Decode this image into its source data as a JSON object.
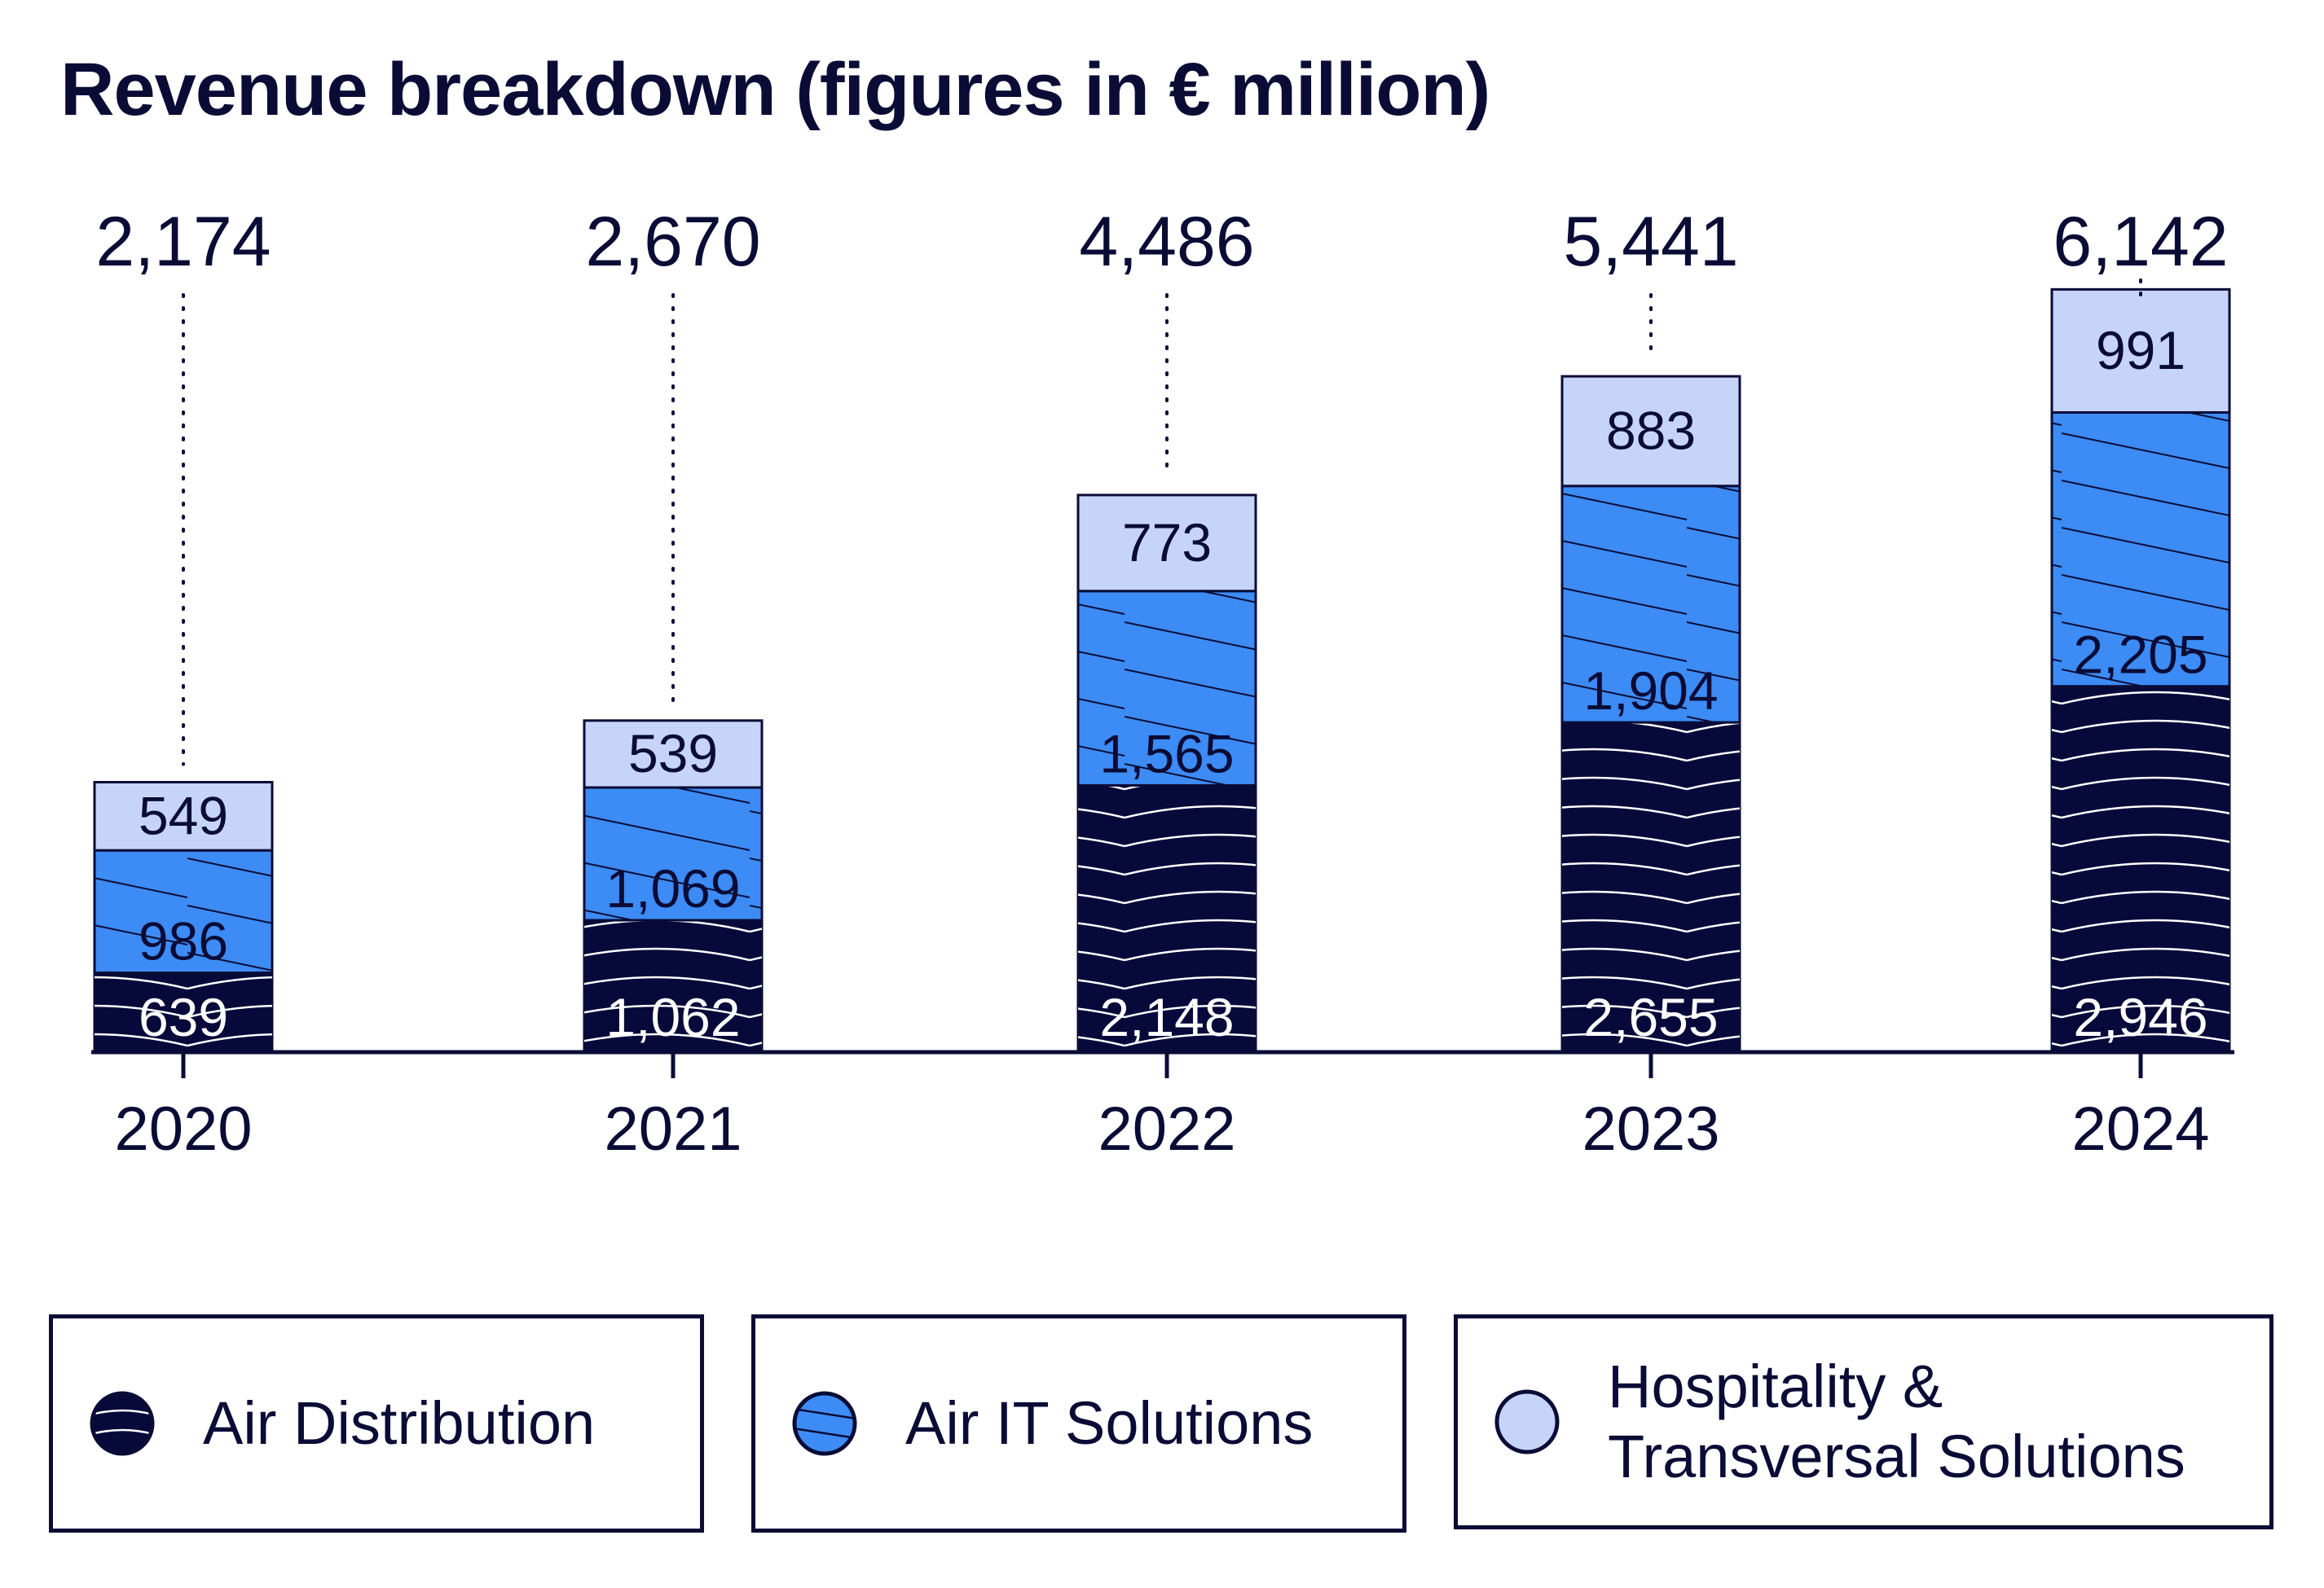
{
  "chart_data": {
    "type": "bar",
    "stacked": true,
    "title": "Revenue breakdown (figures in € million)",
    "xlabel": "",
    "ylabel": "",
    "categories": [
      "2020",
      "2021",
      "2022",
      "2023",
      "2024"
    ],
    "totals": [
      2174,
      2670,
      4486,
      5441,
      6142
    ],
    "total_labels": [
      "2,174",
      "2,670",
      "4,486",
      "5,441",
      "6,142"
    ],
    "series": [
      {
        "name": "Air Distribution",
        "color": "#07093a",
        "pattern": "arcs",
        "values": [
          639,
          1062,
          2148,
          2655,
          2946
        ],
        "labels": [
          "639",
          "1,062",
          "2,148",
          "2,655",
          "2,946"
        ]
      },
      {
        "name": "Air IT Solutions",
        "color": "#3d8bf5",
        "pattern": "diagonal-lines",
        "values": [
          986,
          1069,
          1565,
          1904,
          2205
        ],
        "labels": [
          "986",
          "1,069",
          "1,565",
          "1,904",
          "2,205"
        ]
      },
      {
        "name": "Hospitality & Transversal Solutions",
        "color": "#c6d4f8",
        "pattern": "none",
        "values": [
          549,
          539,
          773,
          883,
          991
        ],
        "labels": [
          "549",
          "539",
          "773",
          "883",
          "991"
        ]
      }
    ],
    "grid": false,
    "legend": "bottom"
  },
  "legend": [
    {
      "label": "Air Distribution"
    },
    {
      "label": "Air IT Solutions"
    },
    {
      "label": "Hospitality &\nTransversal Solutions"
    }
  ],
  "colors": {
    "ink": "#0a0c36",
    "background": "#ffffff"
  }
}
